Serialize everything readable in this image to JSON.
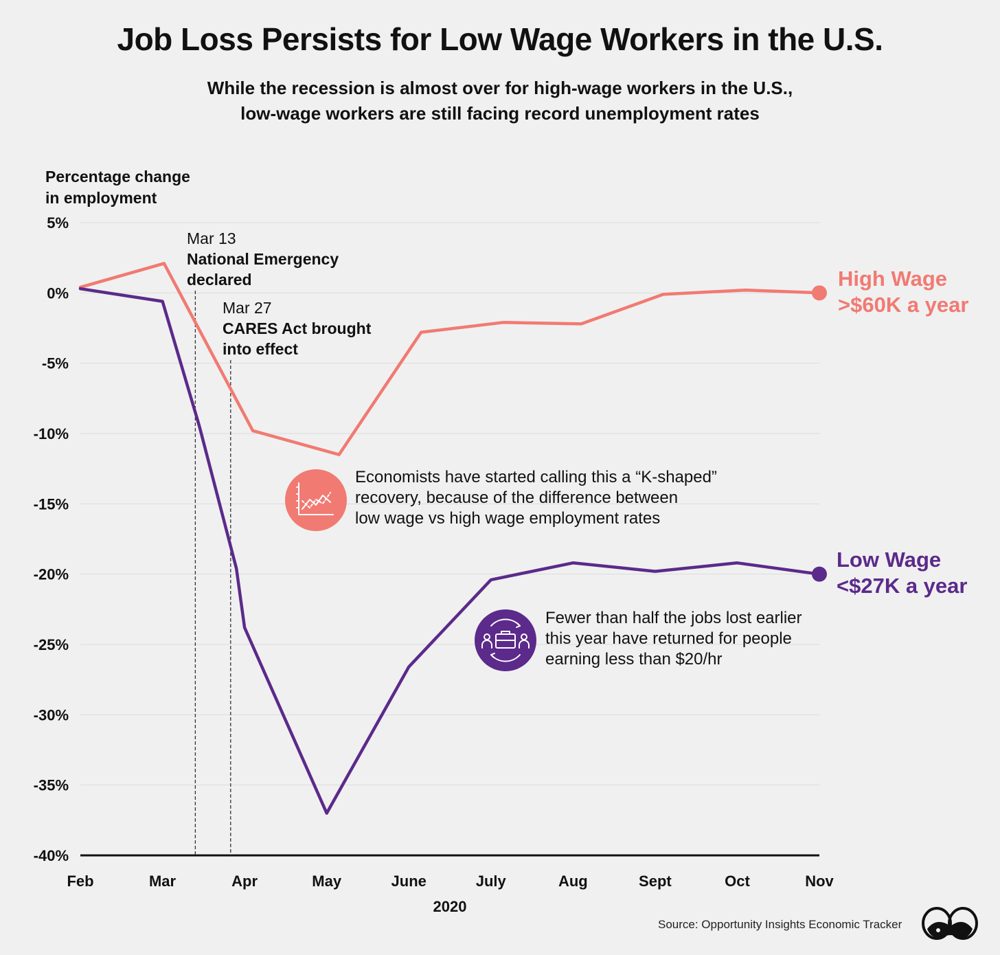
{
  "title": "Job Loss Persists for Low Wage Workers in the U.S.",
  "subtitle": [
    "While the recession is almost over for high-wage workers in the U.S.,",
    "low-wage workers are still facing record unemployment rates"
  ],
  "ylabel_lines": [
    "Percentage change",
    "in employment"
  ],
  "chart_data": {
    "type": "line",
    "title": "Job Loss Persists for Low Wage Workers in the U.S.",
    "ylabel": "Percentage change in employment",
    "xlabel": "2020",
    "ylim": [
      -40,
      5
    ],
    "yticks": [
      5,
      0,
      -5,
      -10,
      -15,
      -20,
      -25,
      -30,
      -35,
      -40
    ],
    "ytick_labels": [
      "5%",
      "0%",
      "-5%",
      "-10%",
      "-15%",
      "-20%",
      "-25%",
      "-30%",
      "-35%",
      "-40%"
    ],
    "months": [
      "Feb",
      "Mar",
      "Apr",
      "May",
      "June",
      "July",
      "Aug",
      "Sept",
      "Oct",
      "Nov"
    ],
    "series": [
      {
        "name": "High Wage",
        "label_lines": [
          "High Wage",
          ">$60K a year"
        ],
        "color": "#f17a72",
        "x": [
          0.0,
          1.02,
          2.1,
          3.15,
          4.15,
          5.15,
          6.1,
          7.1,
          8.1,
          9.0
        ],
        "y": [
          0.4,
          2.1,
          -9.8,
          -11.5,
          -2.8,
          -2.1,
          -2.2,
          -0.1,
          0.2,
          0.0
        ]
      },
      {
        "name": "Low Wage",
        "label_lines": [
          "Low Wage",
          "<$27K a year"
        ],
        "color": "#5b2a8a",
        "x": [
          0.0,
          1.0,
          1.45,
          1.9,
          2.0,
          3.0,
          4.0,
          5.0,
          6.0,
          7.0,
          8.0,
          9.0
        ],
        "y": [
          0.3,
          -0.6,
          -9.5,
          -19.6,
          -23.8,
          -37.0,
          -26.6,
          -20.4,
          -19.2,
          -19.8,
          -19.2,
          -20.0
        ]
      }
    ],
    "annotations": [
      {
        "x": 1.4,
        "date": "Mar 13",
        "text_lines": [
          "National Emergency",
          "declared"
        ]
      },
      {
        "x": 1.83,
        "date": "Mar 27",
        "text_lines": [
          "CARES Act brought",
          "into effect"
        ]
      }
    ]
  },
  "callouts": [
    {
      "icon": "line-chart-icon",
      "color": "#f17a72",
      "lines": [
        "Economists have started calling this a “K-shaped”",
        "recovery, because of the difference between",
        "low wage vs high wage employment rates"
      ]
    },
    {
      "icon": "briefcase-people-icon",
      "color": "#5b2a8a",
      "lines": [
        "Fewer than half the jobs lost earlier",
        "this year have returned for people",
        "earning less than $20/hr"
      ]
    }
  ],
  "source": "Source: Opportunity Insights Economic Tracker",
  "logo": "binoculars-logo"
}
